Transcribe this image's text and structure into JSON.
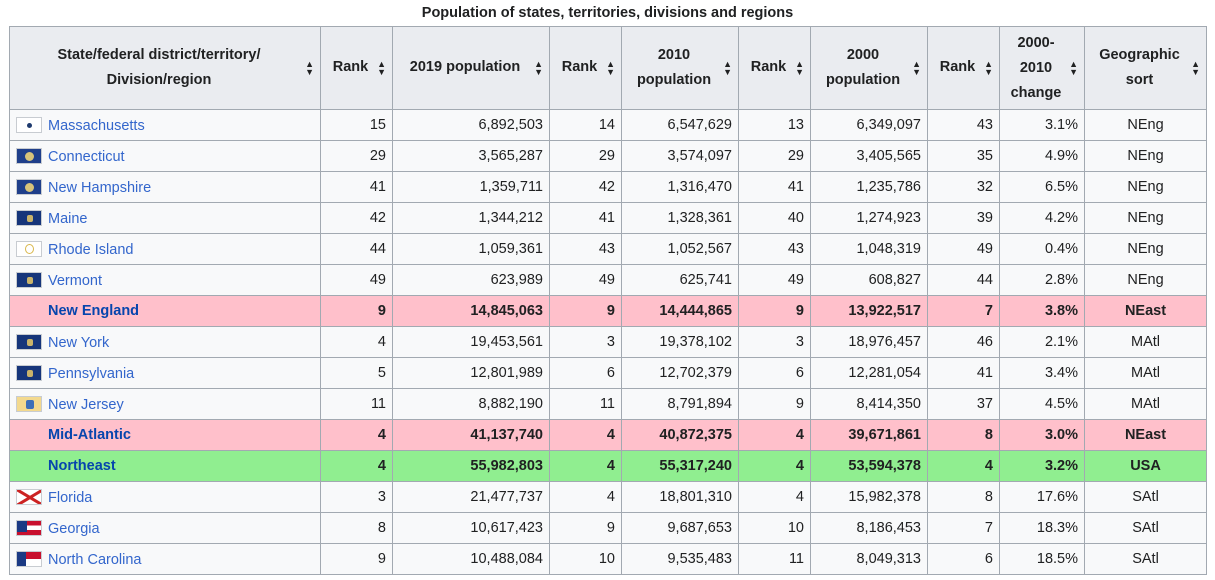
{
  "caption": "Population of states, territories, divisions and regions",
  "headers": [
    "State/federal district/territory/ Division/region",
    "Rank",
    "2019 population",
    "Rank",
    "2010 population",
    "Rank",
    "2000 population",
    "Rank",
    "2000-2010 change",
    "Geographic sort"
  ],
  "sort_icon": "sort-arrows-icon",
  "colors": {
    "link": "#3366cc",
    "summary_link": "#0645ad",
    "division_row": "#ffc0cb",
    "region_row": "#90ee90",
    "header_bg": "#eaecf0",
    "cell_bg": "#f8f9fa",
    "border": "#a2a9b1"
  },
  "rows": [
    {
      "kind": "state",
      "flag": "massachusetts-flag-icon",
      "name": "Massachusetts",
      "rank2019": "15",
      "pop2019": "6,892,503",
      "rank2010": "14",
      "pop2010": "6,547,629",
      "rank2000a": "13",
      "pop2000": "6,349,097",
      "rank2000b": "43",
      "change": "3.1%",
      "sort": "NEng"
    },
    {
      "kind": "state",
      "flag": "connecticut-flag-icon",
      "name": "Connecticut",
      "rank2019": "29",
      "pop2019": "3,565,287",
      "rank2010": "29",
      "pop2010": "3,574,097",
      "rank2000a": "29",
      "pop2000": "3,405,565",
      "rank2000b": "35",
      "change": "4.9%",
      "sort": "NEng"
    },
    {
      "kind": "state",
      "flag": "new-hampshire-flag-icon",
      "name": "New Hampshire",
      "rank2019": "41",
      "pop2019": "1,359,711",
      "rank2010": "42",
      "pop2010": "1,316,470",
      "rank2000a": "41",
      "pop2000": "1,235,786",
      "rank2000b": "32",
      "change": "6.5%",
      "sort": "NEng"
    },
    {
      "kind": "state",
      "flag": "maine-flag-icon",
      "name": "Maine",
      "rank2019": "42",
      "pop2019": "1,344,212",
      "rank2010": "41",
      "pop2010": "1,328,361",
      "rank2000a": "40",
      "pop2000": "1,274,923",
      "rank2000b": "39",
      "change": "4.2%",
      "sort": "NEng"
    },
    {
      "kind": "state",
      "flag": "rhode-island-flag-icon",
      "name": "Rhode Island",
      "rank2019": "44",
      "pop2019": "1,059,361",
      "rank2010": "43",
      "pop2010": "1,052,567",
      "rank2000a": "43",
      "pop2000": "1,048,319",
      "rank2000b": "49",
      "change": "0.4%",
      "sort": "NEng"
    },
    {
      "kind": "state",
      "flag": "vermont-flag-icon",
      "name": "Vermont",
      "rank2019": "49",
      "pop2019": "623,989",
      "rank2010": "49",
      "pop2010": "625,741",
      "rank2000a": "49",
      "pop2000": "608,827",
      "rank2000b": "44",
      "change": "2.8%",
      "sort": "NEng"
    },
    {
      "kind": "division",
      "name": "New England",
      "rank2019": "9",
      "pop2019": "14,845,063",
      "rank2010": "9",
      "pop2010": "14,444,865",
      "rank2000a": "9",
      "pop2000": "13,922,517",
      "rank2000b": "7",
      "change": "3.8%",
      "sort": "NEast"
    },
    {
      "kind": "state",
      "flag": "new-york-flag-icon",
      "name": "New York",
      "rank2019": "4",
      "pop2019": "19,453,561",
      "rank2010": "3",
      "pop2010": "19,378,102",
      "rank2000a": "3",
      "pop2000": "18,976,457",
      "rank2000b": "46",
      "change": "2.1%",
      "sort": "MAtl"
    },
    {
      "kind": "state",
      "flag": "pennsylvania-flag-icon",
      "name": "Pennsylvania",
      "rank2019": "5",
      "pop2019": "12,801,989",
      "rank2010": "6",
      "pop2010": "12,702,379",
      "rank2000a": "6",
      "pop2000": "12,281,054",
      "rank2000b": "41",
      "change": "3.4%",
      "sort": "MAtl"
    },
    {
      "kind": "state",
      "flag": "new-jersey-flag-icon",
      "name": "New Jersey",
      "rank2019": "11",
      "pop2019": "8,882,190",
      "rank2010": "11",
      "pop2010": "8,791,894",
      "rank2000a": "9",
      "pop2000": "8,414,350",
      "rank2000b": "37",
      "change": "4.5%",
      "sort": "MAtl"
    },
    {
      "kind": "division",
      "name": "Mid-Atlantic",
      "rank2019": "4",
      "pop2019": "41,137,740",
      "rank2010": "4",
      "pop2010": "40,872,375",
      "rank2000a": "4",
      "pop2000": "39,671,861",
      "rank2000b": "8",
      "change": "3.0%",
      "sort": "NEast"
    },
    {
      "kind": "region",
      "name": "Northeast",
      "rank2019": "4",
      "pop2019": "55,982,803",
      "rank2010": "4",
      "pop2010": "55,317,240",
      "rank2000a": "4",
      "pop2000": "53,594,378",
      "rank2000b": "4",
      "change": "3.2%",
      "sort": "USA"
    },
    {
      "kind": "state",
      "flag": "florida-flag-icon",
      "name": "Florida",
      "rank2019": "3",
      "pop2019": "21,477,737",
      "rank2010": "4",
      "pop2010": "18,801,310",
      "rank2000a": "4",
      "pop2000": "15,982,378",
      "rank2000b": "8",
      "change": "17.6%",
      "sort": "SAtl"
    },
    {
      "kind": "state",
      "flag": "georgia-flag-icon",
      "name": "Georgia",
      "rank2019": "8",
      "pop2019": "10,617,423",
      "rank2010": "9",
      "pop2010": "9,687,653",
      "rank2000a": "10",
      "pop2000": "8,186,453",
      "rank2000b": "7",
      "change": "18.3%",
      "sort": "SAtl"
    },
    {
      "kind": "state",
      "flag": "north-carolina-flag-icon",
      "name": "North Carolina",
      "rank2019": "9",
      "pop2019": "10,488,084",
      "rank2010": "10",
      "pop2010": "9,535,483",
      "rank2000a": "11",
      "pop2000": "8,049,313",
      "rank2000b": "6",
      "change": "18.5%",
      "sort": "SAtl"
    }
  ]
}
